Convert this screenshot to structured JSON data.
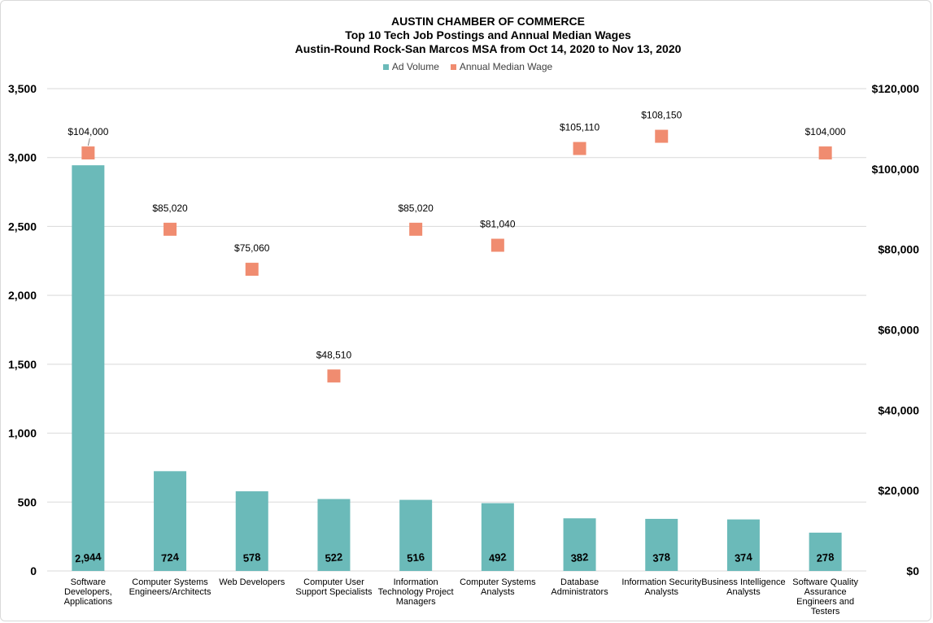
{
  "chart_data": {
    "type": "bar",
    "title": [
      "AUSTIN CHAMBER OF COMMERCE",
      "Top 10 Tech Job Postings and Annual Median Wages",
      "Austin-Round Rock-San Marcos MSA from Oct 14, 2020 to Nov 13, 2020"
    ],
    "categories": [
      [
        "Software",
        "Developers,",
        "Applications"
      ],
      [
        "Computer Systems",
        "Engineers/Architects"
      ],
      [
        "Web Developers"
      ],
      [
        "Computer User",
        "Support Specialists"
      ],
      [
        "Information",
        "Technology Project",
        "Managers"
      ],
      [
        "Computer Systems",
        "Analysts"
      ],
      [
        "Database",
        "Administrators"
      ],
      [
        "Information Security",
        "Analysts"
      ],
      [
        "Business Intelligence",
        "Analysts"
      ],
      [
        "Software Quality",
        "Assurance",
        "Engineers and",
        "Testers"
      ]
    ],
    "series": [
      {
        "name": "Ad Volume",
        "type": "bar",
        "axis": "left",
        "color": "#6bbab9",
        "values": [
          2944,
          724,
          578,
          522,
          516,
          492,
          382,
          378,
          374,
          278
        ],
        "labels": [
          "2,944",
          "724",
          "578",
          "522",
          "516",
          "492",
          "382",
          "378",
          "374",
          "278"
        ]
      },
      {
        "name": "Annual Median Wage",
        "type": "scatter",
        "axis": "right",
        "color": "#f08c70",
        "values": [
          104000,
          85020,
          75060,
          48510,
          85020,
          81040,
          105110,
          108150,
          null,
          104000
        ],
        "labels": [
          "$104,000",
          "$85,020",
          "$75,060",
          "$48,510",
          "$85,020",
          "$81,040",
          "$105,110",
          "$108,150",
          "",
          "$104,000"
        ]
      }
    ],
    "y_left": {
      "range": [
        0,
        3500
      ],
      "ticks": [
        "0",
        "500",
        "1,000",
        "1,500",
        "2,000",
        "2,500",
        "3,000",
        "3,500"
      ]
    },
    "y_right": {
      "range": [
        0,
        120000
      ],
      "ticks": [
        "$0",
        "$20,000",
        "$40,000",
        "$60,000",
        "$80,000",
        "$100,000",
        "$120,000"
      ]
    },
    "grid": true,
    "legend_position": "top"
  }
}
